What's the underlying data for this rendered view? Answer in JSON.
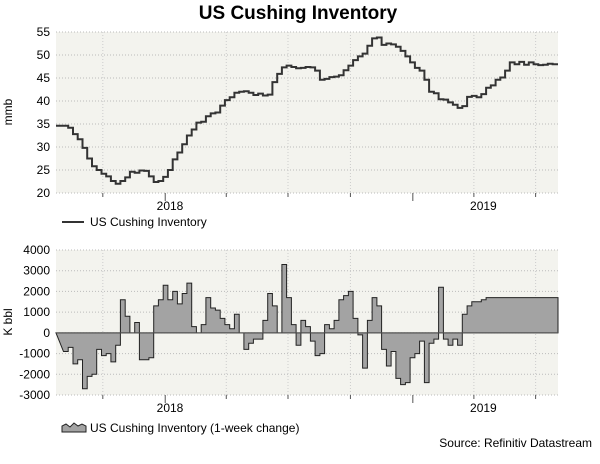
{
  "title": "US Cushing Inventory",
  "source": "Source: Refinitiv Datastream",
  "colors": {
    "panel_bg": "#f3f3ee",
    "inventory_line": "#333333",
    "change_fill": "#a3a3a3",
    "change_stroke": "#222222"
  },
  "chart_data": [
    {
      "type": "line",
      "xlabel": "",
      "ylabel": "mmb",
      "ylim": [
        20,
        55
      ],
      "yticks": [
        20,
        25,
        30,
        35,
        40,
        45,
        50,
        55
      ],
      "x_axis_labels": [
        "2018",
        "2019"
      ],
      "grid": "dotted",
      "legend": "bottom-left",
      "series": [
        {
          "name": "US Cushing Inventory",
          "x": [
            "2017-08-04",
            "2017-08-11",
            "2017-08-18",
            "2017-08-25",
            "2017-09-01",
            "2017-09-08",
            "2017-09-15",
            "2017-09-22",
            "2017-09-29",
            "2017-10-06",
            "2017-10-13",
            "2017-10-20",
            "2017-10-27",
            "2017-11-03",
            "2017-11-10",
            "2017-11-17",
            "2017-11-24",
            "2017-12-01",
            "2017-12-08",
            "2017-12-15",
            "2017-12-22",
            "2017-12-29",
            "2018-01-05",
            "2018-01-12",
            "2018-01-19",
            "2018-01-26",
            "2018-02-02",
            "2018-02-09",
            "2018-02-16",
            "2018-02-23",
            "2018-03-02",
            "2018-03-09",
            "2018-03-16",
            "2018-03-23",
            "2018-03-30",
            "2018-04-06",
            "2018-04-13",
            "2018-04-20",
            "2018-04-27",
            "2018-05-04",
            "2018-05-11",
            "2018-05-18",
            "2018-05-25",
            "2018-06-01",
            "2018-06-08",
            "2018-06-15",
            "2018-06-22",
            "2018-06-29",
            "2018-07-06",
            "2018-07-13",
            "2018-07-20",
            "2018-07-27",
            "2018-08-03",
            "2018-08-10",
            "2018-08-17",
            "2018-08-24",
            "2018-08-31",
            "2018-09-07",
            "2018-09-14",
            "2018-09-21",
            "2018-09-28",
            "2018-10-05",
            "2018-10-12",
            "2018-10-19",
            "2018-10-26",
            "2018-11-02",
            "2018-11-09",
            "2018-11-16",
            "2018-11-23",
            "2018-11-30",
            "2018-12-07",
            "2018-12-14",
            "2018-12-21",
            "2018-12-28",
            "2019-01-04",
            "2019-01-11",
            "2019-01-18",
            "2019-01-25",
            "2019-02-01",
            "2019-02-08",
            "2019-02-15",
            "2019-02-22",
            "2019-03-01",
            "2019-03-08",
            "2019-03-15",
            "2019-03-22",
            "2019-03-29",
            "2019-04-05",
            "2019-04-12",
            "2019-04-19",
            "2019-04-26",
            "2019-05-03",
            "2019-05-10",
            "2019-05-17",
            "2019-05-24",
            "2019-05-31",
            "2019-06-07",
            "2019-06-14",
            "2019-06-21",
            "2019-06-28",
            "2019-07-05",
            "2019-07-12",
            "2019-07-19",
            "2019-07-26"
          ],
          "values": [
            34.6,
            34.2,
            32.8,
            31.7,
            29.8,
            27.5,
            25.8,
            25.0,
            24.2,
            23.6,
            22.6,
            22.0,
            22.6,
            23.4,
            24.6,
            24.4,
            24.9,
            24.8,
            23.6,
            22.4,
            22.6,
            23.5,
            25.0,
            27.3,
            28.8,
            30.6,
            32.5,
            33.8,
            35.3,
            35.5,
            36.7,
            37.3,
            37.5,
            39.0,
            40.2,
            40.8,
            41.8,
            42.0,
            42.1,
            41.8,
            41.3,
            41.6,
            41.2,
            41.4,
            44.1,
            45.9,
            47.3,
            47.7,
            47.4,
            47.1,
            47.2,
            47.4,
            47.3,
            46.6,
            44.6,
            44.8,
            45.2,
            45.3,
            45.6,
            46.7,
            47.7,
            48.9,
            49.7,
            50.3,
            52.0,
            53.6,
            53.8,
            52.2,
            52.5,
            52.3,
            51.8,
            50.9,
            49.7,
            48.4,
            47.2,
            46.6,
            44.6,
            42.0,
            41.7,
            40.4,
            40.3,
            39.7,
            39.2,
            38.5,
            38.9,
            40.9,
            41.1,
            40.8,
            41.5,
            42.9,
            43.4,
            44.6,
            45.1,
            46.6,
            48.4,
            48.0,
            48.5,
            47.9,
            48.4,
            48.0,
            47.8,
            47.9,
            48.1,
            48.0
          ]
        }
      ]
    },
    {
      "type": "area",
      "xlabel": "",
      "ylabel": "K bbl",
      "ylim": [
        -3000,
        4000
      ],
      "yticks": [
        -3000,
        -2000,
        -1000,
        0,
        1000,
        2000,
        3000,
        4000
      ],
      "x_axis_labels": [
        "2018",
        "2019"
      ],
      "grid": "dotted",
      "legend": "bottom-left",
      "series": [
        {
          "name": "US Cushing Inventory (1-week change)",
          "x": [
            "2017-08-04",
            "2017-08-11",
            "2017-08-18",
            "2017-08-25",
            "2017-09-01",
            "2017-09-08",
            "2017-09-15",
            "2017-09-22",
            "2017-09-29",
            "2017-10-06",
            "2017-10-13",
            "2017-10-20",
            "2017-10-27",
            "2017-11-03",
            "2017-11-10",
            "2017-11-17",
            "2017-11-24",
            "2017-12-01",
            "2017-12-08",
            "2017-12-15",
            "2017-12-22",
            "2017-12-29",
            "2018-01-05",
            "2018-01-12",
            "2018-01-19",
            "2018-01-26",
            "2018-02-02",
            "2018-02-09",
            "2018-02-16",
            "2018-02-23",
            "2018-03-02",
            "2018-03-09",
            "2018-03-16",
            "2018-03-23",
            "2018-03-30",
            "2018-04-06",
            "2018-04-13",
            "2018-04-20",
            "2018-04-27",
            "2018-05-04",
            "2018-05-11",
            "2018-05-18",
            "2018-05-25",
            "2018-06-01",
            "2018-06-08",
            "2018-06-15",
            "2018-06-22",
            "2018-06-29",
            "2018-07-06",
            "2018-07-13",
            "2018-07-20",
            "2018-07-27",
            "2018-08-03",
            "2018-08-10",
            "2018-08-17",
            "2018-08-24",
            "2018-08-31",
            "2018-09-07",
            "2018-09-14",
            "2018-09-21",
            "2018-09-28",
            "2018-10-05",
            "2018-10-12",
            "2018-10-19",
            "2018-10-26",
            "2018-11-02",
            "2018-11-09",
            "2018-11-16",
            "2018-11-23",
            "2018-11-30",
            "2018-12-07",
            "2018-12-14",
            "2018-12-21",
            "2018-12-28",
            "2019-01-04",
            "2019-01-11",
            "2019-01-18",
            "2019-01-25",
            "2019-02-01",
            "2019-02-08",
            "2019-02-15",
            "2019-02-22",
            "2019-03-01",
            "2019-03-08",
            "2019-03-15",
            "2019-03-22",
            "2019-03-29",
            "2019-04-05",
            "2019-04-12",
            "2019-04-19",
            "2019-04-26",
            "2019-05-03",
            "2019-05-10",
            "2019-05-17",
            "2019-05-24",
            "2019-05-31",
            "2019-06-07",
            "2019-06-14",
            "2019-06-21",
            "2019-06-28",
            "2019-07-05",
            "2019-07-12",
            "2019-07-19",
            "2019-07-26"
          ],
          "values": [
            -900,
            -700,
            -1500,
            -1300,
            -2700,
            -2100,
            -2000,
            -800,
            -1100,
            -1000,
            -1400,
            -600,
            1600,
            800,
            0,
            500,
            -1300,
            -1300,
            -1200,
            1300,
            1600,
            2300,
            1600,
            2000,
            1400,
            1900,
            2400,
            300,
            0,
            400,
            1700,
            1200,
            1100,
            700,
            400,
            200,
            900,
            0,
            -800,
            -500,
            -300,
            -300,
            600,
            1900,
            1300,
            0,
            3300,
            1700,
            400,
            -600,
            600,
            300,
            -400,
            -1100,
            -1000,
            400,
            200,
            600,
            1600,
            1800,
            2000,
            700,
            -100,
            -1700,
            600,
            1700,
            1300,
            -800,
            -1600,
            -900,
            -2200,
            -2500,
            -2400,
            -1200,
            -1000,
            -400,
            -2400,
            -500,
            -300,
            2200,
            -300,
            -600,
            -300,
            -600,
            900,
            1300,
            1500,
            1500,
            1600,
            1700,
            1700,
            1700,
            1700,
            1700,
            1700,
            1700,
            1700,
            1700,
            1700,
            1700,
            1700,
            1700,
            1700,
            1700
          ]
        }
      ]
    }
  ]
}
